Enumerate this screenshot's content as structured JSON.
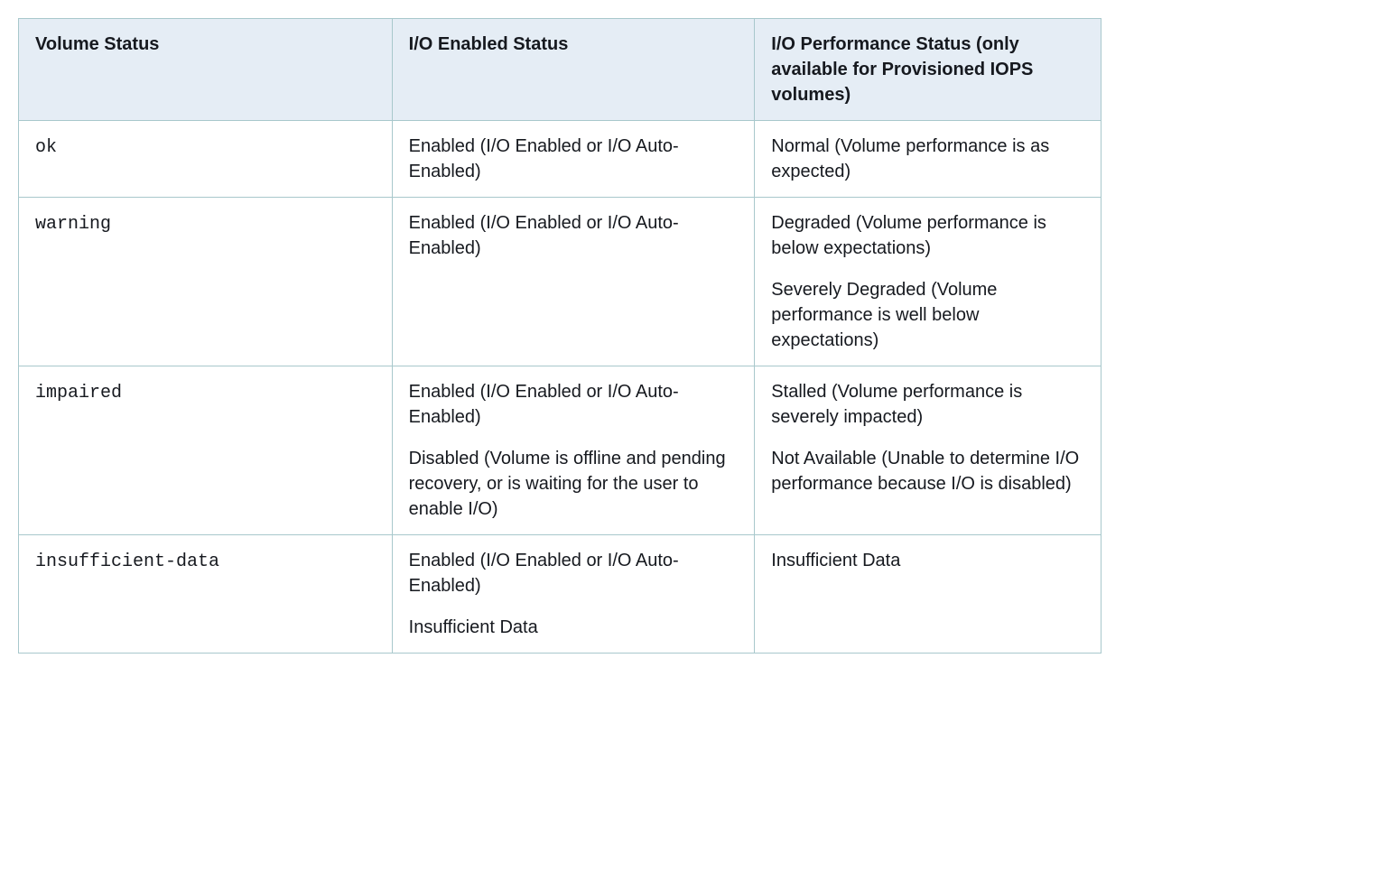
{
  "table": {
    "type": "table",
    "header_bg": "#e5edf5",
    "border_color": "#a8c8cc",
    "font_size_pt": 15,
    "code_font": "Courier New",
    "columns": [
      {
        "label": "Volume Status",
        "width_pct": 34.5
      },
      {
        "label": "I/O Enabled Status",
        "width_pct": 33.5
      },
      {
        "label": "I/O Performance Status (only available for Provisioned IOPS volumes)",
        "width_pct": 32
      }
    ],
    "rows": [
      {
        "status": "ok",
        "io_enabled": [
          "Enabled (I/O Enabled or I/O Auto-Enabled)"
        ],
        "io_perf": [
          "Normal (Volume performance is as expected)"
        ]
      },
      {
        "status": "warning",
        "io_enabled": [
          "Enabled (I/O Enabled or I/O Auto-Enabled)"
        ],
        "io_perf": [
          "Degraded (Volume performance is below expectations)",
          "Severely Degraded (Volume performance is well below expectations)"
        ]
      },
      {
        "status": "impaired",
        "io_enabled": [
          "Enabled (I/O Enabled or I/O Auto-Enabled)",
          "Disabled (Volume is offline and pending recovery, or is waiting for the user to enable I/O)"
        ],
        "io_perf": [
          "Stalled (Volume performance is severely impacted)",
          "Not Available (Unable to determine I/O performance because I/O is disabled)"
        ]
      },
      {
        "status": "insufficient-data",
        "io_enabled": [
          "Enabled (I/O Enabled or I/O Auto-Enabled)",
          "Insufficient Data"
        ],
        "io_perf": [
          "Insufficient Data"
        ]
      }
    ]
  }
}
